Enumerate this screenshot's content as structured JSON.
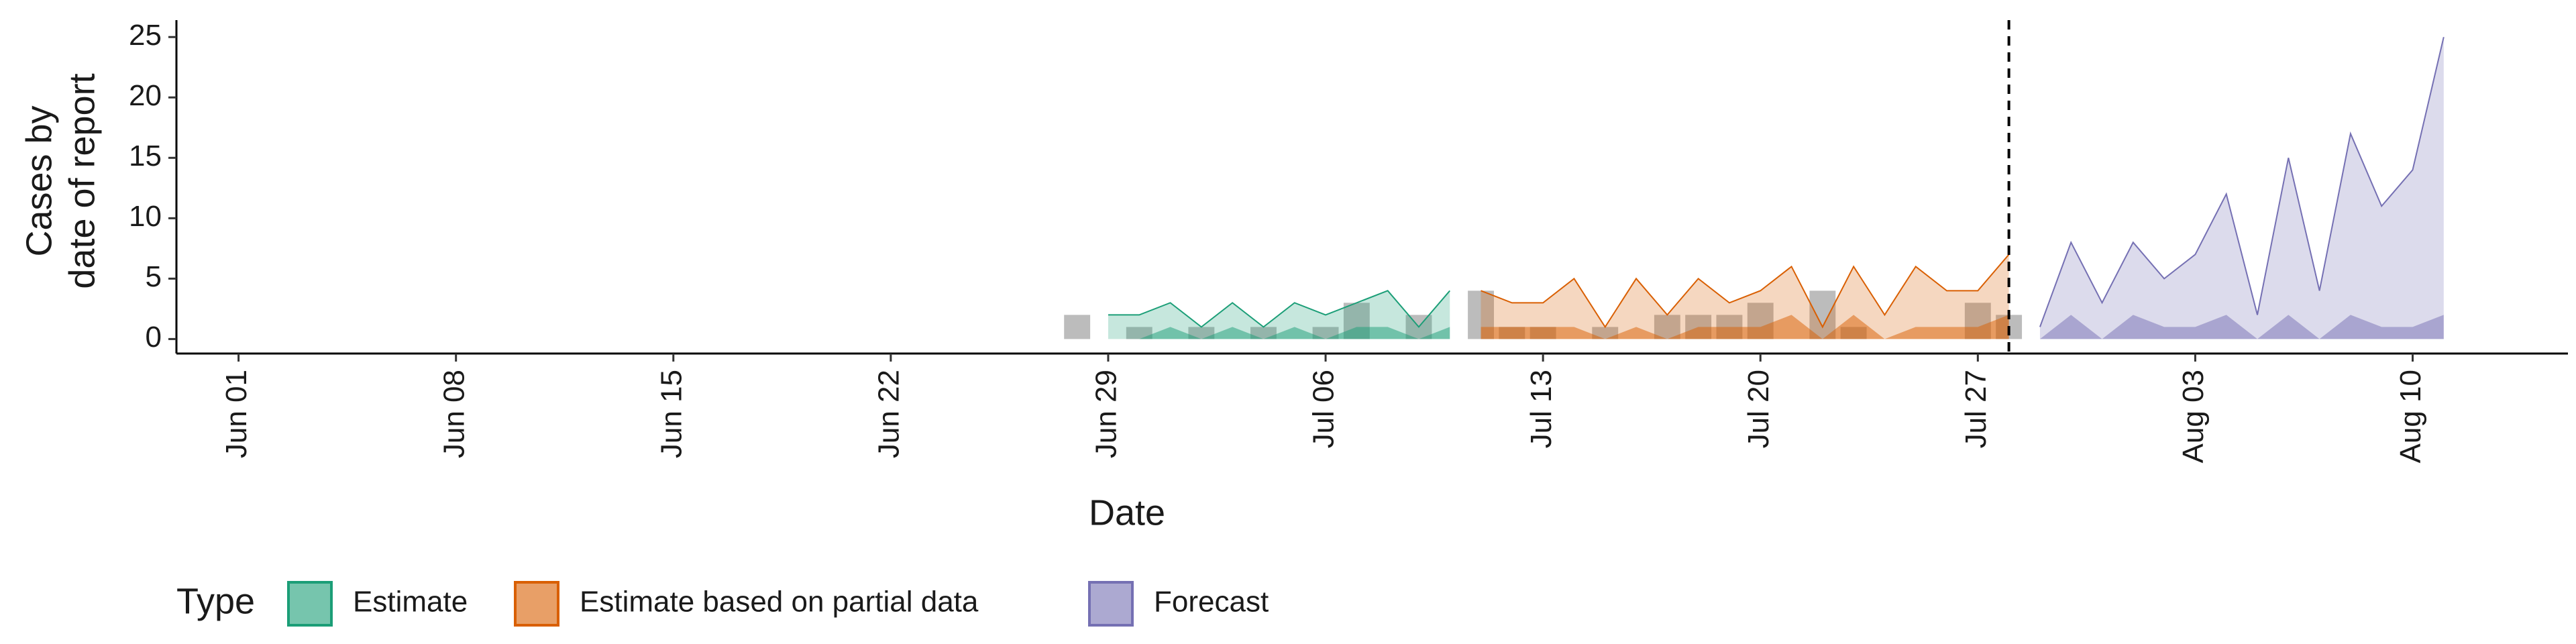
{
  "chart_data": {
    "type": "area",
    "xlabel": "Date",
    "ylabel": [
      "Cases by",
      "date of report"
    ],
    "legend_title": "Type",
    "xlim": [
      "May 30",
      "Aug 15"
    ],
    "xticks": [
      "Jun 01",
      "Jun 08",
      "Jun 15",
      "Jun 22",
      "Jun 29",
      "Jul 06",
      "Jul 13",
      "Jul 20",
      "Jul 27",
      "Aug 03",
      "Aug 10"
    ],
    "ylim": [
      -1.2,
      26.4
    ],
    "yticks": [
      0,
      5,
      10,
      15,
      20,
      25
    ],
    "vline": "Jul 28",
    "reported": {
      "color": "#a6a6a6",
      "x": [
        "Jun 28",
        "Jun 29",
        "Jun 30",
        "Jul 01",
        "Jul 02",
        "Jul 03",
        "Jul 04",
        "Jul 05",
        "Jul 06",
        "Jul 07",
        "Jul 08",
        "Jul 09",
        "Jul 10",
        "Jul 11",
        "Jul 12",
        "Jul 13",
        "Jul 14",
        "Jul 15",
        "Jul 16",
        "Jul 17",
        "Jul 18",
        "Jul 19",
        "Jul 20",
        "Jul 21",
        "Jul 22",
        "Jul 23",
        "Jul 24",
        "Jul 25",
        "Jul 26",
        "Jul 27",
        "Jul 28"
      ],
      "values": [
        2,
        0,
        1,
        0,
        1,
        0,
        1,
        0,
        1,
        3,
        0,
        2,
        0,
        4,
        1,
        1,
        0,
        1,
        0,
        2,
        2,
        2,
        3,
        0,
        4,
        1,
        0,
        0,
        0,
        3,
        2
      ]
    },
    "series": [
      {
        "name": "Estimate",
        "color": "#1b9e77",
        "x": [
          "Jun 29",
          "Jun 30",
          "Jul 01",
          "Jul 02",
          "Jul 03",
          "Jul 04",
          "Jul 05",
          "Jul 06",
          "Jul 07",
          "Jul 08",
          "Jul 09",
          "Jul 10"
        ],
        "values": [
          2,
          2,
          3,
          1,
          3,
          1,
          3,
          2,
          3,
          4,
          1,
          4
        ],
        "inner": [
          0,
          0,
          1,
          0,
          1,
          0,
          1,
          0,
          1,
          1,
          0,
          1
        ]
      },
      {
        "name": "Estimate based on partial data",
        "color": "#d95f02",
        "x": [
          "Jul 11",
          "Jul 12",
          "Jul 13",
          "Jul 14",
          "Jul 15",
          "Jul 16",
          "Jul 17",
          "Jul 18",
          "Jul 19",
          "Jul 20",
          "Jul 21",
          "Jul 22",
          "Jul 23",
          "Jul 24",
          "Jul 25",
          "Jul 26",
          "Jul 27",
          "Jul 28"
        ],
        "values": [
          4,
          3,
          3,
          5,
          1,
          5,
          2,
          5,
          3,
          4,
          6,
          1,
          6,
          2,
          6,
          4,
          4,
          7
        ],
        "inner": [
          1,
          1,
          1,
          1,
          0,
          1,
          0,
          1,
          1,
          1,
          2,
          0,
          2,
          0,
          1,
          1,
          1,
          2
        ]
      },
      {
        "name": "Forecast",
        "color": "#7570b3",
        "x": [
          "Jul 29",
          "Jul 30",
          "Jul 31",
          "Aug 01",
          "Aug 02",
          "Aug 03",
          "Aug 04",
          "Aug 05",
          "Aug 06",
          "Aug 07",
          "Aug 08",
          "Aug 09",
          "Aug 10",
          "Aug 11"
        ],
        "values": [
          1,
          8,
          3,
          8,
          5,
          7,
          12,
          2,
          15,
          4,
          17,
          11,
          14,
          25
        ],
        "inner": [
          0,
          2,
          0,
          2,
          1,
          1,
          2,
          0,
          2,
          0,
          2,
          1,
          1,
          2
        ]
      }
    ]
  }
}
